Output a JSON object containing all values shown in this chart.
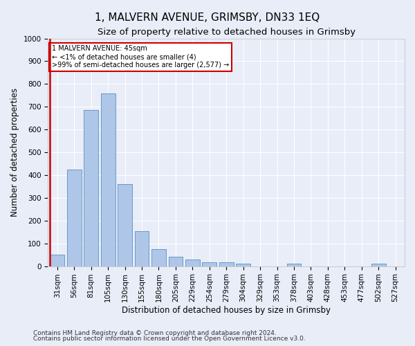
{
  "title": "1, MALVERN AVENUE, GRIMSBY, DN33 1EQ",
  "subtitle": "Size of property relative to detached houses in Grimsby",
  "xlabel": "Distribution of detached houses by size in Grimsby",
  "ylabel": "Number of detached properties",
  "bar_labels": [
    "31sqm",
    "56sqm",
    "81sqm",
    "105sqm",
    "130sqm",
    "155sqm",
    "180sqm",
    "205sqm",
    "229sqm",
    "254sqm",
    "279sqm",
    "304sqm",
    "329sqm",
    "353sqm",
    "378sqm",
    "403sqm",
    "428sqm",
    "453sqm",
    "477sqm",
    "502sqm",
    "527sqm"
  ],
  "bar_values": [
    50,
    425,
    685,
    760,
    360,
    155,
    75,
    40,
    28,
    18,
    18,
    10,
    0,
    0,
    10,
    0,
    0,
    0,
    0,
    12,
    0
  ],
  "bar_color": "#aec6e8",
  "bar_edge_color": "#5a8fc0",
  "highlight_color": "#cc0000",
  "ylim": [
    0,
    1000
  ],
  "yticks": [
    0,
    100,
    200,
    300,
    400,
    500,
    600,
    700,
    800,
    900,
    1000
  ],
  "annotation_text": "1 MALVERN AVENUE: 45sqm\n← <1% of detached houses are smaller (4)\n>99% of semi-detached houses are larger (2,577) →",
  "annotation_box_color": "#ffffff",
  "annotation_box_edge_color": "#cc0000",
  "footer_line1": "Contains HM Land Registry data © Crown copyright and database right 2024.",
  "footer_line2": "Contains public sector information licensed under the Open Government Licence v3.0.",
  "background_color": "#e8edf8",
  "grid_color": "#ffffff",
  "title_fontsize": 11,
  "subtitle_fontsize": 9.5,
  "axis_label_fontsize": 8.5,
  "tick_fontsize": 7.5,
  "footer_fontsize": 6.5
}
